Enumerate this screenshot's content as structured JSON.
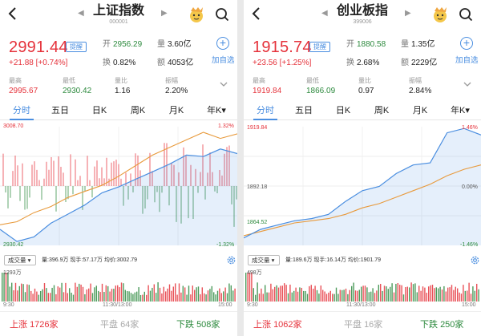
{
  "left": {
    "title": "上证指数",
    "code": "000001",
    "price": "2991.44",
    "tag": "提醒",
    "change": "+21.88",
    "change_pct": "[+0.74%]",
    "open_label": "开",
    "open": "2956.29",
    "volume_label": "量",
    "volume": "3.60亿",
    "turnover_label": "换",
    "turnover": "0.82%",
    "amount_label": "额",
    "amount": "4053亿",
    "add_label": "加自选",
    "high_label": "最高",
    "high": "2995.67",
    "low_label": "最低",
    "low": "2930.42",
    "vr_label": "量比",
    "vr": "1.16",
    "amp_label": "振幅",
    "amp": "2.20%",
    "tabs": [
      "分时",
      "五日",
      "日K",
      "周K",
      "月K",
      "年K"
    ],
    "y_top": "3008.70",
    "y_bottom": "2930.42",
    "pct_top": "1.32%",
    "pct_bottom": "-1.32%",
    "vol_dropdown": "成交量",
    "vol_info": "量:396.9万  现手:57.17万  均价:3002.79",
    "vol_max": "1293万",
    "time_start": "9:30",
    "time_mid": "11:30/13:00",
    "time_end": "15:00",
    "up_label": "上涨",
    "up": "1726家",
    "flat_label": "平盘",
    "flat": "64家",
    "down_label": "下跌",
    "down": "508家",
    "chart_data": {
      "type": "line",
      "series": [
        {
          "values": [
            2941,
            2933,
            2936,
            2945,
            2951,
            2957,
            2965,
            2969,
            2974,
            2979,
            2984,
            2990,
            2989,
            2994,
            2991
          ]
        },
        {
          "values": [
            2944,
            2946,
            2952,
            2956,
            2962,
            2966,
            2970,
            2976,
            2983,
            2990,
            2995,
            3000,
            3005,
            3001,
            3004
          ]
        }
      ]
    }
  },
  "right": {
    "title": "创业板指",
    "code": "399006",
    "price": "1915.74",
    "tag": "提醒",
    "change": "+23.56",
    "change_pct": "[+1.25%]",
    "open_label": "开",
    "open": "1880.58",
    "volume_label": "量",
    "volume": "1.35亿",
    "turnover_label": "换",
    "turnover": "2.68%",
    "amount_label": "额",
    "amount": "2229亿",
    "add_label": "加自选",
    "high_label": "最高",
    "high": "1919.84",
    "low_label": "最低",
    "low": "1866.09",
    "vr_label": "量比",
    "vr": "0.97",
    "amp_label": "振幅",
    "amp": "2.84%",
    "tabs": [
      "分时",
      "五日",
      "日K",
      "周K",
      "月K",
      "年K"
    ],
    "y_top": "1919.84",
    "y_mid": "1892.18",
    "y_bottom": "1864.52",
    "pct_top": "1.46%",
    "pct_mid": "0.00%",
    "pct_bottom": "-1.46%",
    "vol_dropdown": "成交量",
    "vol_info": "量:189.6万  现手:16.14万  均价:1901.79",
    "vol_max": "498万",
    "time_start": "9:30",
    "time_mid": "11:30/13:00",
    "time_end": "15:00",
    "up_label": "上涨",
    "up": "1062家",
    "flat_label": "平盘",
    "flat": "16家",
    "down_label": "下跌",
    "down": "250家",
    "chart_data": {
      "type": "line",
      "series": [
        {
          "values": [
            1868,
            1872,
            1874,
            1876,
            1877,
            1879,
            1885,
            1890,
            1892,
            1898,
            1902,
            1903,
            1917,
            1919,
            1916
          ]
        },
        {
          "values": [
            1869,
            1871,
            1873,
            1875,
            1876,
            1877,
            1879,
            1882,
            1884,
            1887,
            1890,
            1893,
            1897,
            1900,
            1902
          ]
        }
      ]
    }
  },
  "colors": {
    "up": "#e5323b",
    "down": "#2d8a3e",
    "accent": "#4a8ee0",
    "price_line": "#4a8ee0",
    "avg_line": "#e89a3c"
  },
  "icons": [
    "back-icon",
    "nav-left-icon",
    "nav-right-icon",
    "mascot-icon",
    "search-icon",
    "add-icon",
    "chevron-down-icon",
    "gear-icon"
  ]
}
